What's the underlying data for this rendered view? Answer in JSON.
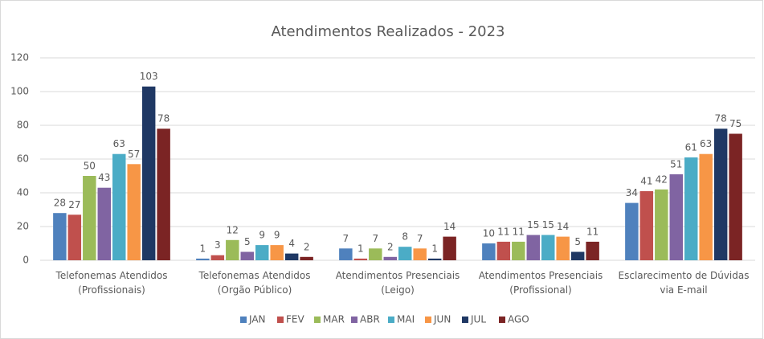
{
  "chart_data": {
    "type": "bar",
    "title": "Atendimentos Realizados - 2023",
    "categories": [
      "Telefonemas Atendidos (Profissionais)",
      "Telefonemas Atendidos (Orgão Público)",
      "Atendimentos Presenciais (Leigo)",
      "Atendimentos Presenciais (Profissional)",
      "Esclarecimento de Dúvidas via E-mail"
    ],
    "series": [
      {
        "name": "JAN",
        "color": "#4f81bd",
        "values": [
          28,
          1,
          7,
          10,
          34
        ]
      },
      {
        "name": "FEV",
        "color": "#c0504d",
        "values": [
          27,
          3,
          1,
          11,
          41
        ]
      },
      {
        "name": "MAR",
        "color": "#9bbb59",
        "values": [
          50,
          12,
          7,
          11,
          42
        ]
      },
      {
        "name": "ABR",
        "color": "#8064a2",
        "values": [
          43,
          5,
          2,
          15,
          51
        ]
      },
      {
        "name": "MAI",
        "color": "#4bacc6",
        "values": [
          63,
          9,
          8,
          15,
          61
        ]
      },
      {
        "name": "JUN",
        "color": "#f79646",
        "values": [
          57,
          9,
          7,
          14,
          63
        ]
      },
      {
        "name": "JUL",
        "color": "#1f3864",
        "values": [
          103,
          4,
          1,
          5,
          78
        ]
      },
      {
        "name": "AGO",
        "color": "#7b2424",
        "values": [
          78,
          2,
          14,
          11,
          75
        ]
      }
    ],
    "ylim": [
      0,
      120
    ],
    "yticks": [
      0,
      20,
      40,
      60,
      80,
      100,
      120
    ],
    "grid": true,
    "legend": "bottom"
  }
}
